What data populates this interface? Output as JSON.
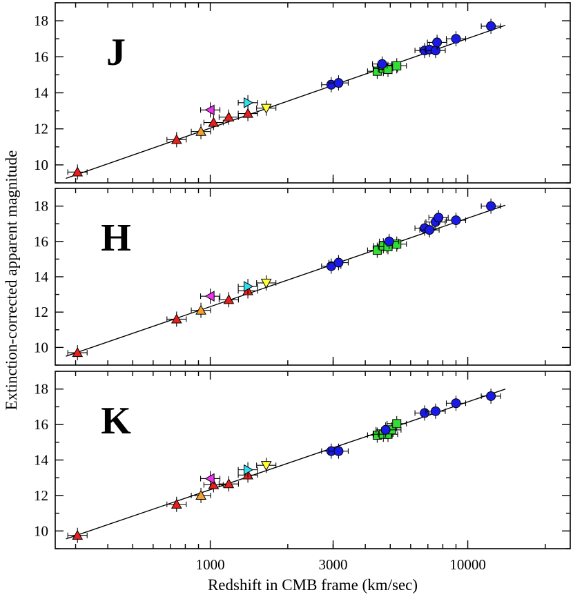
{
  "figure": {
    "ylabel": "Extinction-corrected apparent magnitude",
    "xlabel": "Redshift in CMB frame (km/sec)"
  },
  "chart_data": {
    "type": "scatter",
    "x_scale": "log10",
    "xlim": [
      250,
      25000
    ],
    "ylim": [
      9,
      19
    ],
    "x_tick_labels": [
      {
        "value": 1000,
        "label": "1000"
      },
      {
        "value": 3000,
        "label": "3000"
      },
      {
        "value": 10000,
        "label": "10000"
      }
    ],
    "y_tick_labels": [
      {
        "value": 10,
        "label": "10"
      },
      {
        "value": 12,
        "label": "12"
      },
      {
        "value": 14,
        "label": "14"
      },
      {
        "value": 16,
        "label": "16"
      },
      {
        "value": 18,
        "label": "18"
      }
    ],
    "marker_styles": {
      "red_up": {
        "shape": "triangle-up",
        "color": "#e8201c"
      },
      "orange_up": {
        "shape": "triangle-up",
        "color": "#f5a02a"
      },
      "magenta_left": {
        "shape": "triangle-left",
        "color": "#ee33ee"
      },
      "cyan_right": {
        "shape": "triangle-right",
        "color": "#2ee0ee"
      },
      "yellow_down": {
        "shape": "triangle-down",
        "color": "#ffff33"
      },
      "green_sq": {
        "shape": "square",
        "color": "#33dd33"
      },
      "blue_circle": {
        "shape": "circle",
        "color": "#1a1ae6"
      }
    },
    "panels": [
      {
        "band": "J",
        "fit_line": {
          "x": [
            275,
            14000
          ],
          "y": [
            9.25,
            17.75
          ]
        },
        "points": [
          {
            "x": 305,
            "y": 9.6,
            "style": "red_up"
          },
          {
            "x": 740,
            "y": 11.4,
            "style": "red_up"
          },
          {
            "x": 920,
            "y": 11.85,
            "style": "orange_up"
          },
          {
            "x": 1030,
            "y": 12.35,
            "style": "red_up"
          },
          {
            "x": 1180,
            "y": 12.65,
            "style": "red_up"
          },
          {
            "x": 1400,
            "y": 12.85,
            "style": "red_up"
          },
          {
            "x": 1000,
            "y": 13.05,
            "style": "magenta_left"
          },
          {
            "x": 1400,
            "y": 13.45,
            "style": "cyan_right"
          },
          {
            "x": 1650,
            "y": 13.15,
            "style": "yellow_down"
          },
          {
            "x": 2950,
            "y": 14.45,
            "style": "blue_circle"
          },
          {
            "x": 3150,
            "y": 14.55,
            "style": "blue_circle"
          },
          {
            "x": 4450,
            "y": 15.2,
            "style": "green_sq"
          },
          {
            "x": 4700,
            "y": 15.35,
            "style": "green_sq"
          },
          {
            "x": 4900,
            "y": 15.3,
            "style": "green_sq"
          },
          {
            "x": 5300,
            "y": 15.5,
            "style": "green_sq"
          },
          {
            "x": 4650,
            "y": 15.6,
            "style": "blue_circle"
          },
          {
            "x": 6800,
            "y": 16.35,
            "style": "blue_circle"
          },
          {
            "x": 7100,
            "y": 16.4,
            "style": "blue_circle"
          },
          {
            "x": 7500,
            "y": 16.35,
            "style": "blue_circle"
          },
          {
            "x": 7600,
            "y": 16.8,
            "style": "blue_circle"
          },
          {
            "x": 9000,
            "y": 17.0,
            "style": "blue_circle"
          },
          {
            "x": 12300,
            "y": 17.7,
            "style": "blue_circle"
          }
        ]
      },
      {
        "band": "H",
        "fit_line": {
          "x": [
            275,
            14000
          ],
          "y": [
            9.5,
            18.05
          ]
        },
        "points": [
          {
            "x": 305,
            "y": 9.7,
            "style": "red_up"
          },
          {
            "x": 740,
            "y": 11.6,
            "style": "red_up"
          },
          {
            "x": 920,
            "y": 12.1,
            "style": "orange_up"
          },
          {
            "x": 1180,
            "y": 12.7,
            "style": "red_up"
          },
          {
            "x": 1000,
            "y": 12.9,
            "style": "magenta_left"
          },
          {
            "x": 1400,
            "y": 13.2,
            "style": "red_up"
          },
          {
            "x": 1400,
            "y": 13.45,
            "style": "cyan_right"
          },
          {
            "x": 1650,
            "y": 13.65,
            "style": "yellow_down"
          },
          {
            "x": 2950,
            "y": 14.6,
            "style": "blue_circle"
          },
          {
            "x": 3150,
            "y": 14.8,
            "style": "blue_circle"
          },
          {
            "x": 4450,
            "y": 15.5,
            "style": "green_sq"
          },
          {
            "x": 4700,
            "y": 15.75,
            "style": "green_sq"
          },
          {
            "x": 4900,
            "y": 15.7,
            "style": "green_sq"
          },
          {
            "x": 5300,
            "y": 15.85,
            "style": "green_sq"
          },
          {
            "x": 4950,
            "y": 16.0,
            "style": "blue_circle"
          },
          {
            "x": 6800,
            "y": 16.75,
            "style": "blue_circle"
          },
          {
            "x": 7100,
            "y": 16.65,
            "style": "blue_circle"
          },
          {
            "x": 7500,
            "y": 17.1,
            "style": "blue_circle"
          },
          {
            "x": 7700,
            "y": 17.35,
            "style": "blue_circle"
          },
          {
            "x": 9000,
            "y": 17.2,
            "style": "blue_circle"
          },
          {
            "x": 12300,
            "y": 18.0,
            "style": "blue_circle"
          }
        ]
      },
      {
        "band": "K",
        "fit_line": {
          "x": [
            275,
            14000
          ],
          "y": [
            9.55,
            18.0
          ]
        },
        "points": [
          {
            "x": 305,
            "y": 9.75,
            "style": "red_up"
          },
          {
            "x": 740,
            "y": 11.5,
            "style": "red_up"
          },
          {
            "x": 920,
            "y": 12.0,
            "style": "orange_up"
          },
          {
            "x": 1030,
            "y": 12.6,
            "style": "red_up"
          },
          {
            "x": 1180,
            "y": 12.65,
            "style": "red_up"
          },
          {
            "x": 1000,
            "y": 12.95,
            "style": "magenta_left"
          },
          {
            "x": 1400,
            "y": 13.15,
            "style": "red_up"
          },
          {
            "x": 1400,
            "y": 13.45,
            "style": "cyan_right"
          },
          {
            "x": 1650,
            "y": 13.7,
            "style": "yellow_down"
          },
          {
            "x": 2950,
            "y": 14.5,
            "style": "blue_circle"
          },
          {
            "x": 3150,
            "y": 14.5,
            "style": "blue_circle"
          },
          {
            "x": 4450,
            "y": 15.4,
            "style": "green_sq"
          },
          {
            "x": 4700,
            "y": 15.45,
            "style": "green_sq"
          },
          {
            "x": 4900,
            "y": 15.45,
            "style": "green_sq"
          },
          {
            "x": 5050,
            "y": 15.7,
            "style": "green_sq"
          },
          {
            "x": 5300,
            "y": 16.05,
            "style": "green_sq"
          },
          {
            "x": 4800,
            "y": 15.7,
            "style": "blue_circle"
          },
          {
            "x": 6800,
            "y": 16.65,
            "style": "blue_circle"
          },
          {
            "x": 7500,
            "y": 16.75,
            "style": "blue_circle"
          },
          {
            "x": 9000,
            "y": 17.2,
            "style": "blue_circle"
          },
          {
            "x": 12300,
            "y": 17.6,
            "style": "blue_circle"
          }
        ]
      }
    ]
  }
}
